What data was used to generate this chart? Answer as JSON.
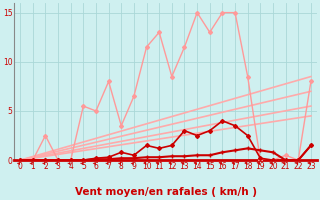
{
  "background_color": "#cff0f0",
  "grid_color": "#aad8d8",
  "xlabel": "Vent moyen/en rafales ( km/h )",
  "xlim": [
    -0.5,
    23.5
  ],
  "ylim": [
    0,
    16
  ],
  "yticks": [
    0,
    5,
    10,
    15
  ],
  "xticks": [
    0,
    1,
    2,
    3,
    4,
    5,
    6,
    7,
    8,
    9,
    10,
    11,
    12,
    13,
    14,
    15,
    16,
    17,
    18,
    19,
    20,
    21,
    22,
    23
  ],
  "series": [
    {
      "x": [
        0,
        1,
        2,
        3,
        4,
        5,
        6,
        7,
        8,
        9,
        10,
        11,
        12,
        13,
        14,
        15,
        16,
        17,
        18,
        19,
        20,
        21,
        22,
        23
      ],
      "y": [
        0,
        0,
        2.5,
        0,
        0,
        5.5,
        5.0,
        8.0,
        3.5,
        6.5,
        11.5,
        13.0,
        8.5,
        11.5,
        15.0,
        13.0,
        15.0,
        15.0,
        8.5,
        0,
        0,
        0.5,
        0,
        8.0
      ],
      "color": "#ff9999",
      "lw": 1.0,
      "marker": "D",
      "ms": 2.0,
      "zorder": 3
    },
    {
      "x": [
        0,
        23
      ],
      "y": [
        0,
        8.5
      ],
      "color": "#ffaaaa",
      "lw": 1.2,
      "marker": null,
      "ms": 0,
      "zorder": 2
    },
    {
      "x": [
        0,
        23
      ],
      "y": [
        0,
        7.0
      ],
      "color": "#ffaaaa",
      "lw": 1.2,
      "marker": null,
      "ms": 0,
      "zorder": 2
    },
    {
      "x": [
        0,
        23
      ],
      "y": [
        0,
        5.5
      ],
      "color": "#ffaaaa",
      "lw": 1.2,
      "marker": null,
      "ms": 0,
      "zorder": 2
    },
    {
      "x": [
        0,
        23
      ],
      "y": [
        0,
        4.5
      ],
      "color": "#ffaaaa",
      "lw": 1.2,
      "marker": null,
      "ms": 0,
      "zorder": 2
    },
    {
      "x": [
        0,
        1,
        2,
        3,
        4,
        5,
        6,
        7,
        8,
        9,
        10,
        11,
        12,
        13,
        14,
        15,
        16,
        17,
        18,
        19,
        20,
        21,
        22,
        23
      ],
      "y": [
        0,
        0,
        0,
        0,
        0,
        0,
        0.2,
        0.3,
        0.8,
        0.5,
        1.5,
        1.2,
        1.5,
        3.0,
        2.5,
        3.0,
        4.0,
        3.5,
        2.5,
        0.2,
        0,
        0,
        0,
        1.5
      ],
      "color": "#cc0000",
      "lw": 1.2,
      "marker": "D",
      "ms": 2.0,
      "zorder": 4
    },
    {
      "x": [
        0,
        1,
        2,
        3,
        4,
        5,
        6,
        7,
        8,
        9,
        10,
        11,
        12,
        13,
        14,
        15,
        16,
        17,
        18,
        19,
        20,
        21,
        22,
        23
      ],
      "y": [
        0,
        0,
        0,
        0,
        0,
        0,
        0.1,
        0.1,
        0.2,
        0.2,
        0.3,
        0.3,
        0.4,
        0.4,
        0.5,
        0.5,
        0.8,
        1.0,
        1.2,
        1.0,
        0.8,
        0,
        0,
        1.5
      ],
      "color": "#cc0000",
      "lw": 1.5,
      "marker": "+",
      "ms": 3.5,
      "zorder": 5
    }
  ],
  "axis_color": "#cc0000",
  "tick_label_color": "#cc0000",
  "axis_label_color": "#cc0000",
  "left_spine_color": "#888888",
  "tick_fontsize": 5.5,
  "xlabel_fontsize": 7.5
}
